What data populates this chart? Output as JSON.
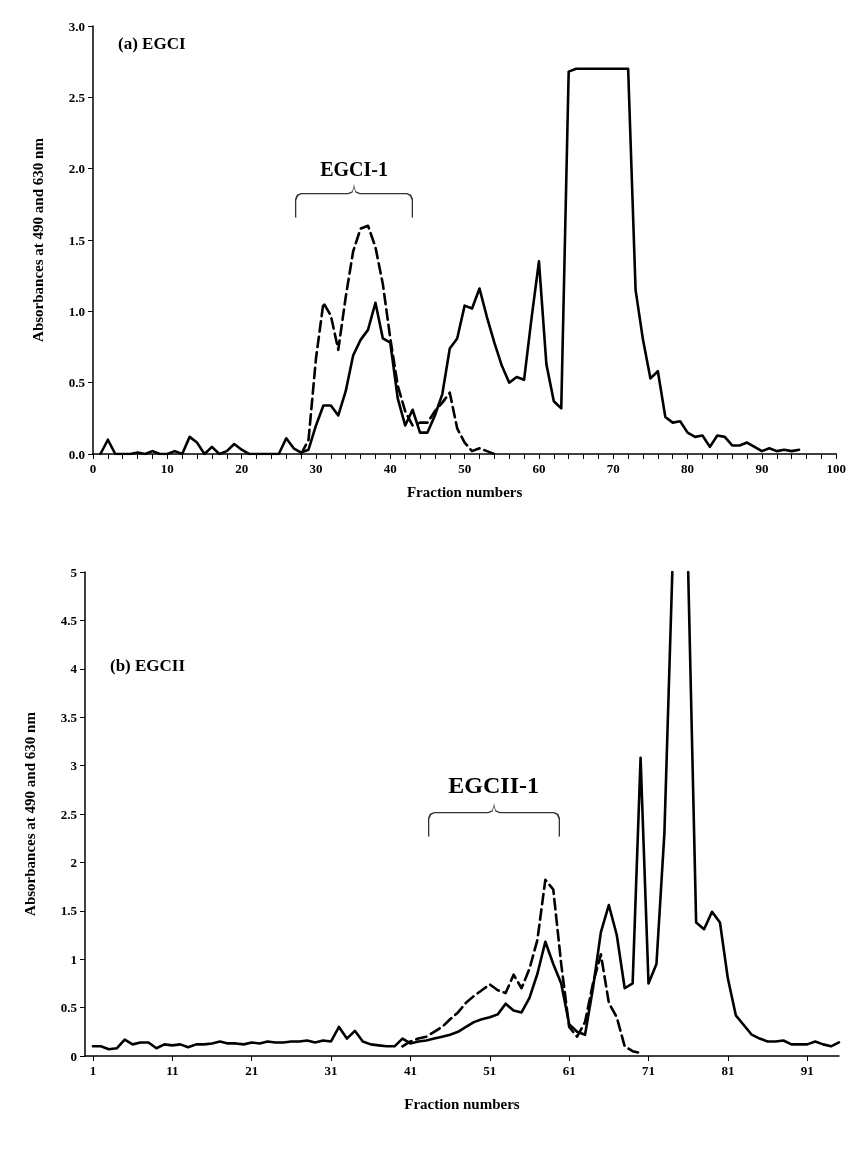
{
  "chart_data": [
    {
      "type": "line",
      "title": "(a) EGCI",
      "xlabel": "Fraction numbers",
      "ylabel": "Absorbances at 490 and 630 nm",
      "xlim": [
        0,
        100
      ],
      "ylim": [
        0,
        3
      ],
      "xticks": [
        0,
        {
          "value": 2,
          "label": null
        },
        {
          "value": 4,
          "label": null
        },
        {
          "value": 6,
          "label": null
        },
        {
          "value": 8,
          "label": null
        },
        10,
        {
          "value": 12,
          "label": null
        },
        {
          "value": 14,
          "label": null
        },
        {
          "value": 16,
          "label": null
        },
        {
          "value": 18,
          "label": null
        },
        20,
        {
          "value": 22,
          "label": null
        },
        {
          "value": 24,
          "label": null
        },
        {
          "value": 26,
          "label": null
        },
        {
          "value": 28,
          "label": null
        },
        30,
        {
          "value": 32,
          "label": null
        },
        {
          "value": 34,
          "label": null
        },
        {
          "value": 36,
          "label": null
        },
        {
          "value": 38,
          "label": null
        },
        40,
        {
          "value": 42,
          "label": null
        },
        {
          "value": 44,
          "label": null
        },
        {
          "value": 46,
          "label": null
        },
        {
          "value": 48,
          "label": null
        },
        50,
        {
          "value": 52,
          "label": null
        },
        {
          "value": 54,
          "label": null
        },
        {
          "value": 56,
          "label": null
        },
        {
          "value": 58,
          "label": null
        },
        60,
        {
          "value": 62,
          "label": null
        },
        {
          "value": 64,
          "label": null
        },
        {
          "value": 66,
          "label": null
        },
        {
          "value": 68,
          "label": null
        },
        70,
        {
          "value": 72,
          "label": null
        },
        {
          "value": 74,
          "label": null
        },
        {
          "value": 76,
          "label": null
        },
        {
          "value": 78,
          "label": null
        },
        80,
        {
          "value": 82,
          "label": null
        },
        {
          "value": 84,
          "label": null
        },
        {
          "value": 86,
          "label": null
        },
        {
          "value": 88,
          "label": null
        },
        90,
        {
          "value": 92,
          "label": null
        },
        {
          "value": 94,
          "label": null
        },
        {
          "value": 96,
          "label": null
        },
        {
          "value": 98,
          "label": null
        },
        100
      ],
      "yticks": [
        {
          "value": 0,
          "label": "0.0"
        },
        {
          "value": 0.5,
          "label": "0.5"
        },
        {
          "value": 1,
          "label": "1.0"
        },
        {
          "value": 1.5,
          "label": "1.5"
        },
        {
          "value": 2,
          "label": "2.0"
        },
        {
          "value": 2.5,
          "label": "2.5"
        },
        {
          "value": 3,
          "label": "3.0"
        }
      ],
      "marker": "none",
      "annotations": [
        "EGCI-1"
      ],
      "series": [
        {
          "color": "#000000",
          "line_style": "solid",
          "x": [
            1,
            2,
            3,
            4,
            5,
            6,
            7,
            8,
            9,
            10,
            11,
            12,
            13,
            14,
            15,
            16,
            17,
            18,
            19,
            20,
            21,
            22,
            23,
            24,
            25,
            26,
            27,
            28,
            29,
            30,
            31,
            32,
            33,
            34,
            35,
            36,
            37,
            38,
            39,
            40,
            41,
            42,
            43,
            44,
            45,
            46,
            47,
            48,
            49,
            50,
            51,
            52,
            53,
            54,
            55,
            56,
            57,
            58,
            59,
            60,
            61,
            62,
            63,
            64,
            65,
            66,
            67,
            68,
            69,
            70,
            71,
            72,
            73,
            74,
            75,
            76,
            77,
            78,
            79,
            80,
            81,
            82,
            83,
            84,
            85,
            86,
            87,
            88,
            89,
            90,
            91,
            92,
            93,
            94,
            95
          ],
          "values": [
            0,
            0.1,
            0,
            0,
            0,
            0.01,
            0,
            0.02,
            0,
            0,
            0.02,
            0,
            0.12,
            0.08,
            0,
            0.05,
            0,
            0.02,
            0.07,
            0.03,
            0,
            0,
            0,
            0,
            0,
            0.11,
            0.04,
            0.01,
            0.03,
            0.2,
            0.34,
            0.34,
            0.27,
            0.44,
            0.69,
            0.8,
            0.87,
            1.06,
            0.81,
            0.78,
            0.39,
            0.2,
            0.31,
            0.15,
            0.15,
            0.27,
            0.42,
            0.74,
            0.81,
            1.04,
            1.02,
            1.16,
            0.96,
            0.78,
            0.62,
            0.5,
            0.54,
            0.52,
            0.95,
            1.35,
            0.63,
            0.37,
            0.32,
            2.68,
            2.7,
            2.7,
            2.7,
            2.7,
            2.7,
            2.7,
            2.7,
            2.7,
            1.15,
            0.8,
            0.53,
            0.58,
            0.26,
            0.22,
            0.23,
            0.15,
            0.12,
            0.13,
            0.05,
            0.13,
            0.12,
            0.06,
            0.06,
            0.08,
            0.05,
            0.02,
            0.04,
            0.02,
            0.03,
            0.02,
            0.03
          ]
        },
        {
          "color": "#000000",
          "line_style": "dashed",
          "x": [
            28,
            29,
            30,
            31,
            32,
            33,
            34,
            35,
            36,
            37,
            38,
            39,
            40,
            41,
            42,
            43,
            44,
            45,
            46,
            47,
            48,
            49,
            50,
            51,
            52,
            53,
            54
          ],
          "values": [
            0,
            0.1,
            0.67,
            1.06,
            0.97,
            0.73,
            1.1,
            1.42,
            1.58,
            1.6,
            1.45,
            1.19,
            0.81,
            0.48,
            0.3,
            0.2,
            0.22,
            0.22,
            0.3,
            0.36,
            0.43,
            0.18,
            0.08,
            0.02,
            0.04,
            0.02,
            0
          ]
        }
      ]
    },
    {
      "type": "line",
      "title": "(b) EGCII",
      "xlabel": "Fraction numbers",
      "ylabel": "Absorbances at 490 and 630 nm",
      "xlim": [
        0,
        95
      ],
      "ylim": [
        0,
        5
      ],
      "xticks": [
        1,
        11,
        21,
        31,
        41,
        51,
        61,
        71,
        81,
        91
      ],
      "yticks": [
        0,
        0.5,
        1,
        1.5,
        2,
        2.5,
        3,
        3.5,
        4,
        4.5,
        5
      ],
      "marker": "none",
      "annotations": [
        "EGCII-1"
      ],
      "series": [
        {
          "color": "#000000",
          "line_style": "solid",
          "x": [
            1,
            2,
            3,
            4,
            5,
            6,
            7,
            8,
            9,
            10,
            11,
            12,
            13,
            14,
            15,
            16,
            17,
            18,
            19,
            20,
            21,
            22,
            23,
            24,
            25,
            26,
            27,
            28,
            29,
            30,
            31,
            32,
            33,
            34,
            35,
            36,
            37,
            38,
            39,
            40,
            41,
            42,
            43,
            44,
            45,
            46,
            47,
            48,
            49,
            50,
            51,
            52,
            53,
            54,
            55,
            56,
            57,
            58,
            59,
            60,
            61,
            62,
            63,
            64,
            65,
            66,
            67,
            68,
            69,
            70,
            71,
            72,
            73,
            74,
            75,
            76,
            77,
            78,
            79,
            80,
            81,
            82,
            83,
            84,
            85,
            86,
            87,
            88,
            89,
            90,
            91,
            92,
            93,
            94,
            95
          ],
          "values": [
            0.1,
            0.1,
            0.07,
            0.08,
            0.17,
            0.12,
            0.14,
            0.14,
            0.08,
            0.12,
            0.11,
            0.12,
            0.09,
            0.12,
            0.12,
            0.13,
            0.15,
            0.13,
            0.13,
            0.12,
            0.14,
            0.13,
            0.15,
            0.14,
            0.14,
            0.15,
            0.15,
            0.16,
            0.14,
            0.16,
            0.15,
            0.3,
            0.18,
            0.26,
            0.15,
            0.12,
            0.11,
            0.1,
            0.1,
            0.18,
            0.13,
            0.15,
            0.16,
            0.18,
            0.2,
            0.22,
            0.25,
            0.3,
            0.35,
            0.38,
            0.4,
            0.43,
            0.54,
            0.47,
            0.45,
            0.6,
            0.85,
            1.18,
            0.95,
            0.75,
            0.33,
            0.25,
            0.22,
            0.7,
            1.28,
            1.56,
            1.25,
            0.7,
            0.75,
            3.08,
            0.75,
            0.95,
            2.3,
            5,
            null,
            5,
            1.38,
            1.31,
            1.49,
            1.38,
            0.8,
            0.42,
            0.32,
            0.22,
            0.18,
            0.15,
            0.15,
            0.16,
            0.12,
            0.12,
            0.12,
            0.15,
            0.12,
            0.1,
            0.14
          ]
        },
        {
          "color": "#000000",
          "line_style": "dashed",
          "x": [
            40,
            41,
            42,
            43,
            44,
            45,
            46,
            47,
            48,
            49,
            50,
            51,
            52,
            53,
            54,
            55,
            56,
            57,
            58,
            59,
            60,
            61,
            62,
            63,
            64,
            65,
            66,
            67,
            68,
            69,
            70
          ],
          "values": [
            0.1,
            0.15,
            0.18,
            0.2,
            0.25,
            0.3,
            0.38,
            0.45,
            0.55,
            0.62,
            0.68,
            0.74,
            0.68,
            0.65,
            0.84,
            0.7,
            0.9,
            1.2,
            1.82,
            1.72,
            0.95,
            0.3,
            0.2,
            0.35,
            0.75,
            1.05,
            0.55,
            0.4,
            0.1,
            0.05,
            0.03
          ]
        }
      ]
    }
  ]
}
